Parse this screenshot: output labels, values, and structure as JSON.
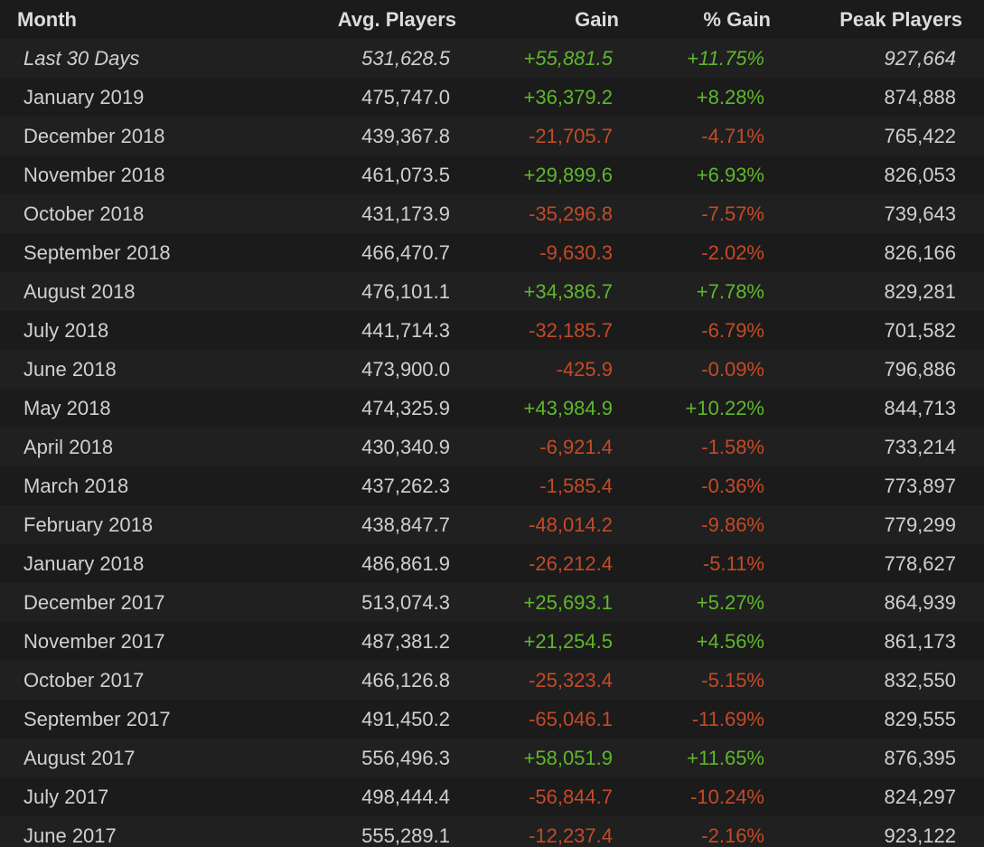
{
  "headers": {
    "month": "Month",
    "avg": "Avg. Players",
    "gain": "Gain",
    "pgain": "% Gain",
    "peak": "Peak Players"
  },
  "colors": {
    "positive": "#5fb72b",
    "negative": "#c44a26",
    "background": "#1b1b1b",
    "row_alt": "#202020"
  },
  "rows": [
    {
      "month": "Last 30 Days",
      "avg": "531,628.5",
      "gain": "+55,881.5",
      "pgain": "+11.75%",
      "peak": "927,664",
      "trend": "pos"
    },
    {
      "month": "January 2019",
      "avg": "475,747.0",
      "gain": "+36,379.2",
      "pgain": "+8.28%",
      "peak": "874,888",
      "trend": "pos"
    },
    {
      "month": "December 2018",
      "avg": "439,367.8",
      "gain": "-21,705.7",
      "pgain": "-4.71%",
      "peak": "765,422",
      "trend": "neg"
    },
    {
      "month": "November 2018",
      "avg": "461,073.5",
      "gain": "+29,899.6",
      "pgain": "+6.93%",
      "peak": "826,053",
      "trend": "pos"
    },
    {
      "month": "October 2018",
      "avg": "431,173.9",
      "gain": "-35,296.8",
      "pgain": "-7.57%",
      "peak": "739,643",
      "trend": "neg"
    },
    {
      "month": "September 2018",
      "avg": "466,470.7",
      "gain": "-9,630.3",
      "pgain": "-2.02%",
      "peak": "826,166",
      "trend": "neg"
    },
    {
      "month": "August 2018",
      "avg": "476,101.1",
      "gain": "+34,386.7",
      "pgain": "+7.78%",
      "peak": "829,281",
      "trend": "pos"
    },
    {
      "month": "July 2018",
      "avg": "441,714.3",
      "gain": "-32,185.7",
      "pgain": "-6.79%",
      "peak": "701,582",
      "trend": "neg"
    },
    {
      "month": "June 2018",
      "avg": "473,900.0",
      "gain": "-425.9",
      "pgain": "-0.09%",
      "peak": "796,886",
      "trend": "neg"
    },
    {
      "month": "May 2018",
      "avg": "474,325.9",
      "gain": "+43,984.9",
      "pgain": "+10.22%",
      "peak": "844,713",
      "trend": "pos"
    },
    {
      "month": "April 2018",
      "avg": "430,340.9",
      "gain": "-6,921.4",
      "pgain": "-1.58%",
      "peak": "733,214",
      "trend": "neg"
    },
    {
      "month": "March 2018",
      "avg": "437,262.3",
      "gain": "-1,585.4",
      "pgain": "-0.36%",
      "peak": "773,897",
      "trend": "neg"
    },
    {
      "month": "February 2018",
      "avg": "438,847.7",
      "gain": "-48,014.2",
      "pgain": "-9.86%",
      "peak": "779,299",
      "trend": "neg"
    },
    {
      "month": "January 2018",
      "avg": "486,861.9",
      "gain": "-26,212.4",
      "pgain": "-5.11%",
      "peak": "778,627",
      "trend": "neg"
    },
    {
      "month": "December 2017",
      "avg": "513,074.3",
      "gain": "+25,693.1",
      "pgain": "+5.27%",
      "peak": "864,939",
      "trend": "pos"
    },
    {
      "month": "November 2017",
      "avg": "487,381.2",
      "gain": "+21,254.5",
      "pgain": "+4.56%",
      "peak": "861,173",
      "trend": "pos"
    },
    {
      "month": "October 2017",
      "avg": "466,126.8",
      "gain": "-25,323.4",
      "pgain": "-5.15%",
      "peak": "832,550",
      "trend": "neg"
    },
    {
      "month": "September 2017",
      "avg": "491,450.2",
      "gain": "-65,046.1",
      "pgain": "-11.69%",
      "peak": "829,555",
      "trend": "neg"
    },
    {
      "month": "August 2017",
      "avg": "556,496.3",
      "gain": "+58,051.9",
      "pgain": "+11.65%",
      "peak": "876,395",
      "trend": "pos"
    },
    {
      "month": "July 2017",
      "avg": "498,444.4",
      "gain": "-56,844.7",
      "pgain": "-10.24%",
      "peak": "824,297",
      "trend": "neg"
    },
    {
      "month": "June 2017",
      "avg": "555,289.1",
      "gain": "-12,237.4",
      "pgain": "-2.16%",
      "peak": "923,122",
      "trend": "neg"
    }
  ]
}
